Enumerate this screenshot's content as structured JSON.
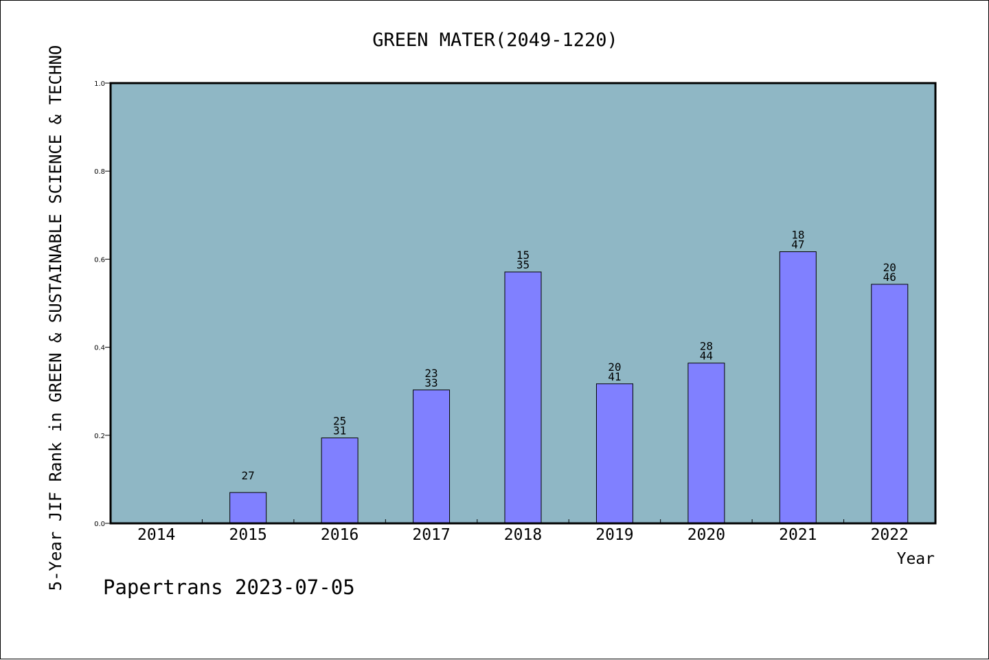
{
  "chart_data": {
    "type": "bar",
    "title": "GREEN MATER(2049-1220)",
    "xlabel": "Year",
    "ylabel": "5-Year JIF Rank in GREEN & SUSTAINABLE SCIENCE & TECHNO",
    "ylim": [
      0,
      1.0
    ],
    "yticks": [
      "0.0",
      "0.2",
      "0.4",
      "0.6",
      "0.8",
      "1.0"
    ],
    "categories": [
      "2014",
      "2015",
      "2016",
      "2017",
      "2018",
      "2019",
      "2020",
      "2021",
      "2022"
    ],
    "values": [
      null,
      0.07,
      0.194,
      0.303,
      0.571,
      0.317,
      0.364,
      0.617,
      0.543
    ],
    "bar_labels": [
      [],
      [
        "27"
      ],
      [
        "25",
        "31"
      ],
      [
        "23",
        "33"
      ],
      [
        "15",
        "35"
      ],
      [
        "20",
        "41"
      ],
      [
        "28",
        "44"
      ],
      [
        "18",
        "47"
      ],
      [
        "20",
        "46"
      ]
    ],
    "grid": false,
    "colors": {
      "plot_background": "#8fb7c5",
      "bar_fill": "#8080ff",
      "bar_stroke": "#000000"
    }
  },
  "footer": "Papertrans 2023-07-05"
}
